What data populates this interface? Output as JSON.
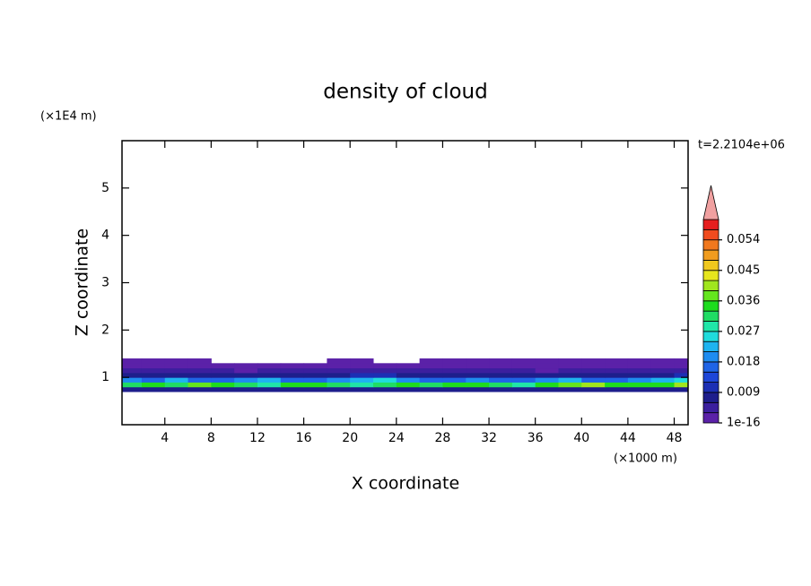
{
  "chart_data": {
    "type": "contour",
    "title": "density of cloud",
    "xlabel": "X coordinate",
    "ylabel": "Z coordinate",
    "x_unit": "(×1000 m)",
    "y_unit": "(×1E4 m)",
    "time_label": "t=2.2104e+06",
    "xlim": [
      0.3,
      49.2
    ],
    "ylim": [
      0,
      6
    ],
    "xticks": [
      4,
      8,
      12,
      16,
      20,
      24,
      28,
      32,
      36,
      40,
      44,
      48
    ],
    "yticks": [
      1,
      2,
      3,
      4,
      5
    ],
    "x": [
      1,
      3,
      5,
      7,
      9,
      11,
      13,
      15,
      17,
      19,
      21,
      23,
      25,
      27,
      29,
      31,
      33,
      35,
      37,
      39,
      41,
      43,
      45,
      47,
      49
    ],
    "z": [
      0.75,
      0.85,
      0.95,
      1.05,
      1.15,
      1.25,
      1.35
    ],
    "values": [
      [
        0.006,
        0.007,
        0.006,
        0.008,
        0.007,
        0.006,
        0.007,
        0.008,
        0.006,
        0.007,
        0.006,
        0.008,
        0.007,
        0.006,
        0.007,
        0.008,
        0.007,
        0.006,
        0.007,
        0.008,
        0.006,
        0.007,
        0.008,
        0.007,
        0.006
      ],
      [
        0.032,
        0.036,
        0.03,
        0.038,
        0.034,
        0.031,
        0.029,
        0.033,
        0.035,
        0.03,
        0.028,
        0.032,
        0.034,
        0.03,
        0.036,
        0.033,
        0.031,
        0.029,
        0.034,
        0.037,
        0.039,
        0.035,
        0.033,
        0.036,
        0.04
      ],
      [
        0.02,
        0.018,
        0.022,
        0.017,
        0.016,
        0.019,
        0.021,
        0.018,
        0.015,
        0.02,
        0.023,
        0.024,
        0.019,
        0.017,
        0.016,
        0.02,
        0.018,
        0.017,
        0.019,
        0.021,
        0.018,
        0.017,
        0.02,
        0.022,
        0.024
      ],
      [
        0.009,
        0.007,
        0.008,
        0.006,
        0.007,
        0.008,
        0.009,
        0.007,
        0.006,
        0.008,
        0.01,
        0.011,
        0.009,
        0.007,
        0.008,
        0.007,
        0.006,
        0.008,
        0.007,
        0.009,
        0.008,
        0.007,
        0.008,
        0.009,
        0.01
      ],
      [
        0.004,
        0.003,
        0.003,
        0.004,
        0.003,
        0.002,
        0.003,
        0.004,
        0.003,
        0.003,
        0.004,
        0.003,
        0.003,
        0.004,
        0.003,
        0.003,
        0.004,
        0.003,
        0.002,
        0.003,
        0.004,
        0.003,
        0.003,
        0.004,
        0.004
      ],
      [
        0.002,
        0.002,
        0.001,
        0.002,
        0.001,
        0.001,
        0.002,
        0.001,
        0.001,
        0.002,
        0.001,
        0.002,
        0.001,
        0.002,
        0.002,
        0.001,
        0.002,
        0.002,
        0.001,
        0.002,
        0.001,
        0.002,
        0.002,
        0.001,
        0.002
      ],
      [
        0.001,
        0.001,
        0.001,
        0.001,
        null,
        null,
        null,
        null,
        null,
        0.001,
        0.001,
        null,
        null,
        0.001,
        0.001,
        0.001,
        0.002,
        0.001,
        0.001,
        0.001,
        0.001,
        0.001,
        0.001,
        0.001,
        0.001
      ]
    ],
    "clim": [
      0,
      0.06
    ],
    "cticks": [
      1e-16,
      0.009,
      0.018,
      0.027,
      0.036,
      0.045,
      0.054
    ],
    "colors": [
      "#5b21a8",
      "#3b1f9e",
      "#1e1e8c",
      "#1c2fb4",
      "#1e46d8",
      "#1f64e6",
      "#1e8cf0",
      "#1eb4f0",
      "#20dcdc",
      "#20e6a8",
      "#20dc64",
      "#1edc1e",
      "#64e61e",
      "#a0e61e",
      "#e6e61e",
      "#f0c81e",
      "#f09c1e",
      "#f0781e",
      "#f04b1e",
      "#e61e1e"
    ],
    "over_color": "#f0a0a0"
  }
}
